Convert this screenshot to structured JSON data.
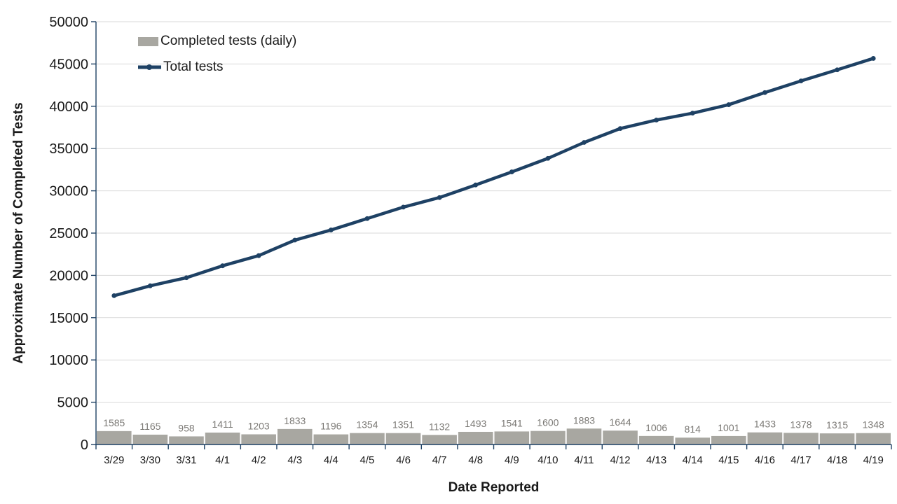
{
  "chart": {
    "y_axis_title": "Approximate Number of Completed Tests",
    "x_axis_title": "Date Reported",
    "colors": {
      "bar_fill": "#A8A7A1",
      "line_stroke": "#1E4164",
      "axis_stroke": "#1E4164",
      "gridline": "#D9D9D9",
      "data_label": "#7B7975",
      "tick_label": "#1a1a1a"
    }
  },
  "chart_data": {
    "type": "bar+line combo",
    "title": "",
    "xlabel": "Date Reported",
    "ylabel": "Approximate Number of Completed Tests",
    "ylim": [
      0,
      50000
    ],
    "ytick_step": 5000,
    "y_ticks": [
      0,
      5000,
      10000,
      15000,
      20000,
      25000,
      30000,
      35000,
      40000,
      45000,
      50000
    ],
    "grid": "horizontal",
    "legend_position": "top-left-inside",
    "categories": [
      "3/29",
      "3/30",
      "3/31",
      "4/1",
      "4/2",
      "4/3",
      "4/4",
      "4/5",
      "4/6",
      "4/7",
      "4/8",
      "4/9",
      "4/10",
      "4/11",
      "4/12",
      "4/13",
      "4/14",
      "4/15",
      "4/16",
      "4/17",
      "4/18",
      "4/19"
    ],
    "series": [
      {
        "name": "Completed tests (daily)",
        "type": "bar",
        "color": "#A8A7A1",
        "data_labels": true,
        "values": [
          1585,
          1165,
          958,
          1411,
          1203,
          1833,
          1196,
          1354,
          1351,
          1132,
          1493,
          1541,
          1600,
          1883,
          1644,
          1006,
          814,
          1001,
          1433,
          1378,
          1315,
          1348
        ]
      },
      {
        "name": "Total tests",
        "type": "line",
        "color": "#1E4164",
        "data_labels": false,
        "values": [
          17600,
          18765,
          19723,
          21134,
          22337,
          24170,
          25366,
          26720,
          28071,
          29203,
          30696,
          32237,
          33837,
          35720,
          37364,
          38370,
          39184,
          40185,
          41618,
          42996,
          44311,
          45659
        ]
      }
    ]
  }
}
